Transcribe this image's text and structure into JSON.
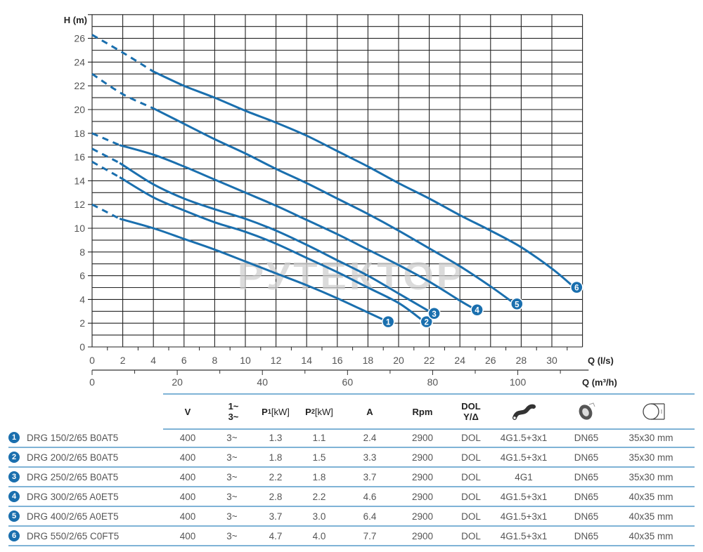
{
  "chart_data": {
    "type": "line",
    "title": "",
    "xlabel": "Q (l/s)",
    "xlabel_secondary": "Q (m³/h)",
    "ylabel": "H (m)",
    "xlim": [
      0,
      32
    ],
    "ylim": [
      0,
      28
    ],
    "x_ticks": [
      0,
      2,
      4,
      6,
      8,
      10,
      12,
      14,
      16,
      18,
      20,
      22,
      24,
      26,
      28,
      30
    ],
    "x_secondary_ticks": [
      0,
      20,
      40,
      60,
      80,
      100
    ],
    "y_ticks": [
      0,
      2,
      4,
      6,
      8,
      10,
      12,
      14,
      16,
      18,
      20,
      22,
      24,
      26
    ],
    "grid": true,
    "line_color": "#1a6fae",
    "watermark": "РУТЕКТОР",
    "series": [
      {
        "name": "1",
        "model": "DRG 150/2/65 B0AT5",
        "dashed_until": 1.8,
        "x": [
          0,
          1.8,
          4,
          6,
          8,
          10,
          12,
          14,
          16,
          18,
          19
        ],
        "y": [
          12,
          10.8,
          10,
          9.1,
          8.2,
          7.2,
          6.2,
          5.2,
          4.1,
          2.9,
          2.3
        ]
      },
      {
        "name": "2",
        "model": "DRG 200/2/65 B0AT5",
        "dashed_until": 1.8,
        "x": [
          0,
          1.8,
          4,
          6,
          8,
          10,
          12,
          14,
          16,
          18,
          20,
          21.5
        ],
        "y": [
          15.6,
          14.3,
          12.6,
          11.5,
          10.5,
          9.7,
          8.7,
          7.5,
          6.3,
          5.0,
          3.7,
          2.3
        ]
      },
      {
        "name": "3",
        "model": "DRG 250/2/65 B0AT5",
        "dashed_until": 1.8,
        "x": [
          0,
          1.8,
          4,
          6,
          8,
          10,
          12,
          14,
          16,
          18,
          20,
          22
        ],
        "y": [
          16.7,
          15.5,
          13.7,
          12.5,
          11.6,
          10.8,
          9.8,
          8.6,
          7.3,
          6.0,
          4.5,
          3.0
        ]
      },
      {
        "name": "4",
        "model": "DRG 300/2/65 A0ET5",
        "dashed_until": 1.8,
        "x": [
          0,
          1.8,
          4,
          6,
          8,
          10,
          12,
          14,
          16,
          18,
          20,
          22,
          24,
          24.8
        ],
        "y": [
          18,
          17,
          16.2,
          15.2,
          14.1,
          13,
          11.9,
          10.7,
          9.5,
          8.2,
          6.9,
          5.5,
          3.9,
          3.3
        ]
      },
      {
        "name": "5",
        "model": "DRG 400/2/65 A0ET5",
        "dashed_until": 4,
        "x": [
          0,
          2,
          4,
          6,
          8,
          10,
          12,
          14,
          16,
          18,
          20,
          22,
          24,
          26,
          27.4
        ],
        "y": [
          23,
          21.3,
          20.1,
          18.8,
          17.5,
          16.3,
          15,
          13.8,
          12.5,
          11.2,
          9.8,
          8.3,
          6.8,
          5.1,
          3.8
        ]
      },
      {
        "name": "6",
        "model": "DRG 550/2/65 C0FT5",
        "dashed_until": 4,
        "x": [
          0,
          2,
          4,
          6,
          8,
          10,
          12,
          14,
          16,
          18,
          20,
          22,
          24,
          26,
          28,
          30,
          31.3
        ],
        "y": [
          26.3,
          24.8,
          23.2,
          22,
          21,
          19.9,
          18.9,
          17.8,
          16.5,
          15.2,
          13.8,
          12.5,
          11.1,
          9.8,
          8.4,
          6.6,
          5.2
        ]
      }
    ]
  },
  "table": {
    "headers": {
      "v": "V",
      "phase_top": "1~",
      "phase_bottom": "3~",
      "p1": "P",
      "p1_sub": "1",
      "p1_unit": "[kW]",
      "p2": "P",
      "p2_sub": "2",
      "p2_unit": "[kW]",
      "a": "A",
      "rpm": "Rpm",
      "start_top": "DOL",
      "start_bottom": "Y/Δ",
      "cable_icon": "cable-icon",
      "outlet_icon": "outlet-flange-icon",
      "passage_icon": "solid-passage-icon"
    },
    "rows": [
      {
        "num": "1",
        "model": "DRG 150/2/65 B0AT5",
        "v": "400",
        "phase": "3~",
        "p1": "1.3",
        "p2": "1.1",
        "a": "2.4",
        "rpm": "2900",
        "start": "DOL",
        "cable": "4G1.5+3x1",
        "outlet": "DN65",
        "passage": "35x30 mm"
      },
      {
        "num": "2",
        "model": "DRG 200/2/65 B0AT5",
        "v": "400",
        "phase": "3~",
        "p1": "1.8",
        "p2": "1.5",
        "a": "3.3",
        "rpm": "2900",
        "start": "DOL",
        "cable": "4G1.5+3x1",
        "outlet": "DN65",
        "passage": "35x30 mm"
      },
      {
        "num": "3",
        "model": "DRG 250/2/65 B0AT5",
        "v": "400",
        "phase": "3~",
        "p1": "2.2",
        "p2": "1.8",
        "a": "3.7",
        "rpm": "2900",
        "start": "DOL",
        "cable": "4G1",
        "outlet": "DN65",
        "passage": "35x30 mm"
      },
      {
        "num": "4",
        "model": "DRG 300/2/65 A0ET5",
        "v": "400",
        "phase": "3~",
        "p1": "2.8",
        "p2": "2.2",
        "a": "4.6",
        "rpm": "2900",
        "start": "DOL",
        "cable": "4G1.5+3x1",
        "outlet": "DN65",
        "passage": "40x35 mm"
      },
      {
        "num": "5",
        "model": "DRG 400/2/65 A0ET5",
        "v": "400",
        "phase": "3~",
        "p1": "3.7",
        "p2": "3.0",
        "a": "6.4",
        "rpm": "2900",
        "start": "DOL",
        "cable": "4G1.5+3x1",
        "outlet": "DN65",
        "passage": "40x35 mm"
      },
      {
        "num": "6",
        "model": "DRG 550/2/65 C0FT5",
        "v": "400",
        "phase": "3~",
        "p1": "4.7",
        "p2": "4.0",
        "a": "7.7",
        "rpm": "2900",
        "start": "DOL",
        "cable": "4G1.5+3x1",
        "outlet": "DN65",
        "passage": "40x35 mm"
      }
    ]
  }
}
